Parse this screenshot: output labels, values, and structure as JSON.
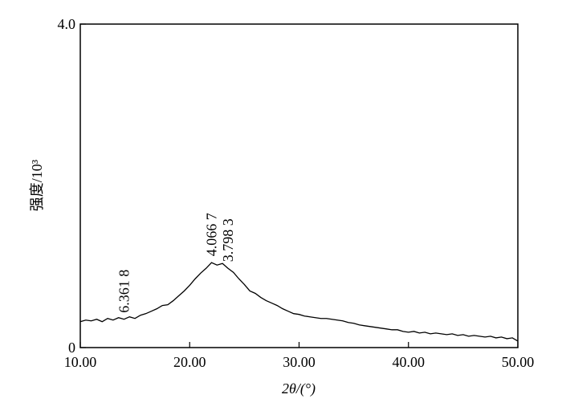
{
  "chart_data": {
    "type": "line",
    "xlabel": "2θ/(°)",
    "ylabel": "强度/10³",
    "x": [
      10,
      10.5,
      11,
      11.5,
      12,
      12.5,
      13,
      13.5,
      14,
      14.5,
      15,
      15.5,
      16,
      16.5,
      17,
      17.5,
      18,
      18.5,
      19,
      19.5,
      20,
      20.5,
      21,
      21.5,
      22,
      22.5,
      23,
      23.5,
      24,
      24.5,
      25,
      25.5,
      26,
      26.5,
      27,
      27.5,
      28,
      28.5,
      29,
      29.5,
      30,
      30.5,
      31,
      31.5,
      32,
      32.5,
      33,
      33.5,
      34,
      34.5,
      35,
      35.5,
      36,
      36.5,
      37,
      37.5,
      38,
      38.5,
      39,
      39.5,
      40,
      40.5,
      41,
      41.5,
      42,
      42.5,
      43,
      43.5,
      44,
      44.5,
      45,
      45.5,
      46,
      46.5,
      47,
      47.5,
      48,
      48.5,
      49,
      49.5,
      50
    ],
    "series": [
      {
        "color": "#000000",
        "values": [
          0.32,
          0.34,
          0.33,
          0.35,
          0.32,
          0.36,
          0.34,
          0.37,
          0.35,
          0.38,
          0.36,
          0.4,
          0.42,
          0.45,
          0.48,
          0.52,
          0.53,
          0.58,
          0.64,
          0.7,
          0.77,
          0.85,
          0.92,
          0.98,
          1.05,
          1.02,
          1.04,
          0.98,
          0.93,
          0.85,
          0.78,
          0.7,
          0.67,
          0.62,
          0.58,
          0.55,
          0.52,
          0.48,
          0.45,
          0.42,
          0.41,
          0.39,
          0.38,
          0.37,
          0.36,
          0.36,
          0.35,
          0.34,
          0.33,
          0.31,
          0.3,
          0.28,
          0.27,
          0.26,
          0.25,
          0.24,
          0.23,
          0.22,
          0.22,
          0.2,
          0.19,
          0.2,
          0.18,
          0.19,
          0.17,
          0.18,
          0.17,
          0.16,
          0.17,
          0.15,
          0.16,
          0.14,
          0.15,
          0.14,
          0.13,
          0.14,
          0.12,
          0.13,
          0.11,
          0.12,
          0.08
        ]
      }
    ],
    "xlim": [
      10,
      50
    ],
    "xticks": [
      {
        "value": 10,
        "label": "10.00"
      },
      {
        "value": 20,
        "label": "20.00"
      },
      {
        "value": 30,
        "label": "30.00"
      },
      {
        "value": 40,
        "label": "40.00"
      },
      {
        "value": 50,
        "label": "50.00"
      }
    ],
    "ylim": [
      0,
      4
    ],
    "yticks": [
      0,
      {
        "value": 4,
        "label": "4.0"
      }
    ],
    "annotations": [
      {
        "text": "6.361 8",
        "x": 14
      },
      {
        "text": "4.066 7",
        "x": 22
      },
      {
        "text": "3.798 3",
        "x": 23.5
      }
    ]
  }
}
